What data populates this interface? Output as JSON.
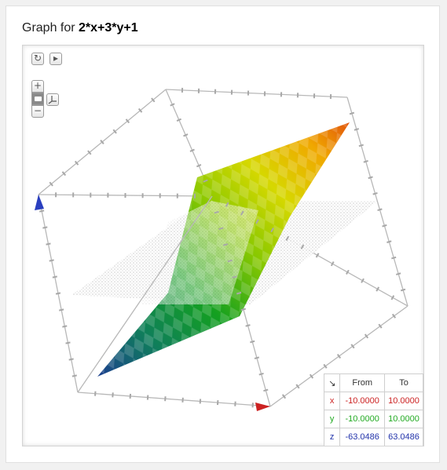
{
  "header": {
    "prefix": "Graph for ",
    "expression": "2*x+3*y+1"
  },
  "controls": {
    "reset_icon": "refresh-icon",
    "play_icon": "play-icon",
    "zoom_in_label": "+",
    "zoom_out_label": "−",
    "camera_icon": "camera-icon",
    "axes_icon": "axes-icon"
  },
  "range_table": {
    "corner_icon": "arrow-icon",
    "corner_glyph": "↘",
    "headers": [
      "From",
      "To"
    ],
    "rows": [
      {
        "axis": "x",
        "from": "-10.0000",
        "to": "10.0000",
        "color": "#cc2222"
      },
      {
        "axis": "y",
        "from": "-10.0000",
        "to": "10.0000",
        "color": "#22aa22"
      },
      {
        "axis": "z",
        "from": "-63.0486",
        "to": "63.0486",
        "color": "#2233aa"
      }
    ]
  },
  "colors": {
    "x_axis": "#cc2222",
    "y_axis": "#22aa22",
    "z_axis": "#2233aa"
  }
}
